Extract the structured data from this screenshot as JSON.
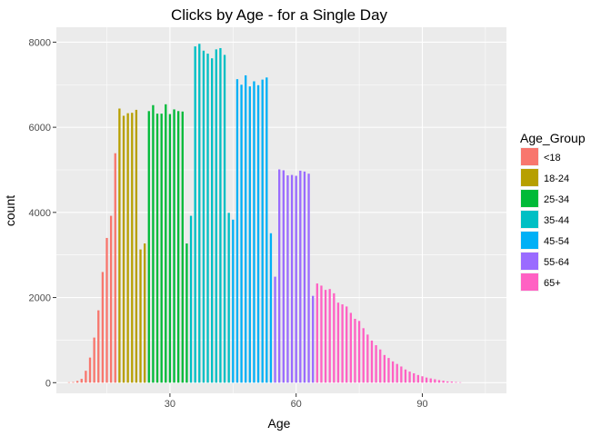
{
  "chart_data": {
    "type": "bar",
    "title": "Clicks by Age - for a Single Day",
    "xlabel": "Age",
    "ylabel": "count",
    "xlim": [
      3,
      110
    ],
    "ylim": [
      -250,
      8350
    ],
    "xticks": [
      30,
      60,
      90
    ],
    "yticks": [
      0,
      2000,
      4000,
      6000,
      8000
    ],
    "grid": true,
    "panel_background": "#ebebeb",
    "legend": {
      "title": "Age_Group",
      "placement": "right",
      "entries": [
        {
          "label": "<18",
          "color": "#F8766D"
        },
        {
          "label": "18-24",
          "color": "#B79F00"
        },
        {
          "label": "25-34",
          "color": "#00BA38"
        },
        {
          "label": "35-44",
          "color": "#00BFC4"
        },
        {
          "label": "45-54",
          "color": "#00B0F6"
        },
        {
          "label": "55-64",
          "color": "#9A6BFF"
        },
        {
          "label": "65+",
          "color": "#FF61C3"
        }
      ]
    },
    "series": [
      {
        "name": "<18",
        "color": "#F8766D",
        "x": [
          6,
          7,
          8,
          9,
          10,
          11,
          12,
          13,
          14,
          15,
          16,
          17
        ],
        "values": [
          10,
          15,
          40,
          90,
          280,
          590,
          1060,
          1700,
          2600,
          3400,
          3920,
          5390
        ]
      },
      {
        "name": "18-24",
        "color": "#B79F00",
        "x": [
          18,
          19,
          20,
          21,
          22,
          23,
          24
        ],
        "values": [
          6440,
          6270,
          6330,
          6340,
          6410,
          3130,
          3270
        ]
      },
      {
        "name": "25-34",
        "color": "#00BA38",
        "x": [
          25,
          26,
          27,
          28,
          29,
          30,
          31,
          32,
          33,
          34
        ],
        "values": [
          6380,
          6520,
          6320,
          6320,
          6540,
          6310,
          6420,
          6380,
          6370,
          3270
        ]
      },
      {
        "name": "35-44",
        "color": "#00BFC4",
        "x": [
          35,
          36,
          37,
          38,
          39,
          40,
          41,
          42,
          43,
          44
        ],
        "values": [
          3920,
          7900,
          7960,
          7800,
          7730,
          7620,
          7830,
          7860,
          7700,
          3990
        ]
      },
      {
        "name": "45-54",
        "color": "#00B0F6",
        "x": [
          45,
          46,
          47,
          48,
          49,
          50,
          51,
          52,
          53,
          54
        ],
        "values": [
          3830,
          7130,
          7000,
          7220,
          6960,
          7080,
          6990,
          7120,
          7170,
          3510
        ]
      },
      {
        "name": "55-64",
        "color": "#9A6BFF",
        "x": [
          55,
          56,
          57,
          58,
          59,
          60,
          61,
          62,
          63,
          64
        ],
        "values": [
          2490,
          5010,
          4990,
          4870,
          4880,
          4860,
          4980,
          4960,
          4910,
          2040
        ]
      },
      {
        "name": "65+",
        "color": "#FF61C3",
        "x": [
          65,
          66,
          67,
          68,
          69,
          70,
          71,
          72,
          73,
          74,
          75,
          76,
          77,
          78,
          79,
          80,
          81,
          82,
          83,
          84,
          85,
          86,
          87,
          88,
          89,
          90,
          91,
          92,
          93,
          94,
          95,
          96,
          97,
          98,
          99
        ],
        "values": [
          2330,
          2280,
          2180,
          2200,
          2100,
          1880,
          1840,
          1790,
          1640,
          1500,
          1450,
          1280,
          1130,
          990,
          880,
          780,
          650,
          580,
          500,
          440,
          380,
          310,
          260,
          220,
          180,
          150,
          120,
          100,
          80,
          60,
          45,
          30,
          25,
          15,
          10
        ]
      }
    ]
  }
}
